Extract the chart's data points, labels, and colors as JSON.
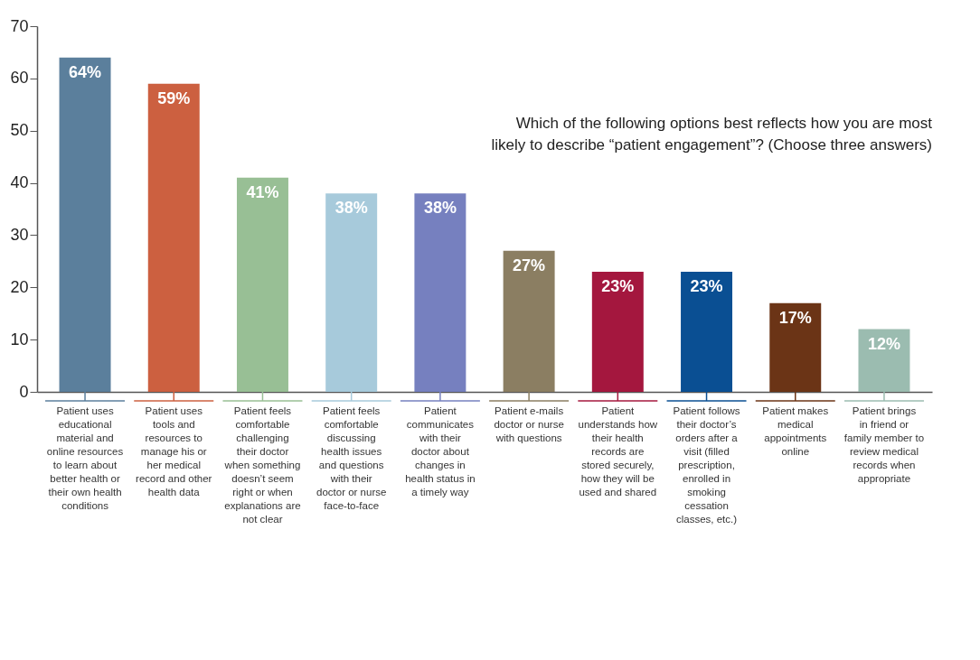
{
  "chart_data": {
    "type": "bar",
    "title": "Which of the following options best reflects how you are most likely to describe “patient engagement”? (Choose three answers)",
    "categories": [
      "Patient uses educational material and online resources to learn about better health or their own health conditions",
      "Patient uses tools and resources to manage his or her medical record and other health data",
      "Patient feels comfortable challenging their doctor when something doesn’t seem right or when explanations are not clear",
      "Patient feels comfortable discussing health issues and questions with their doctor or nurse face-to-face",
      "Patient communicates with their doctor about changes in health status in a timely way",
      "Patient e-mails doctor or nurse with questions",
      "Patient understands how their health records are stored securely, how they will be used and shared",
      "Patient follows their doctor’s orders after a visit (filled prescription, enrolled in smoking cessation classes, etc.)",
      "Patient makes medical appointments online",
      "Patient brings in friend or family member to review medical records when appropriate"
    ],
    "values": [
      64,
      59,
      41,
      38,
      38,
      27,
      23,
      23,
      17,
      12
    ],
    "colors": [
      "#5b7f9c",
      "#cc6040",
      "#98bf95",
      "#a7cadb",
      "#7680bf",
      "#8b7e62",
      "#a4173e",
      "#0a4f93",
      "#6b3416",
      "#9bbcb0"
    ],
    "value_labels": [
      "64%",
      "59%",
      "41%",
      "38%",
      "38%",
      "27%",
      "23%",
      "23%",
      "17%",
      "12%"
    ],
    "ylim": [
      0,
      70
    ],
    "yticks": [
      0,
      10,
      20,
      30,
      40,
      50,
      60,
      70
    ],
    "grid": false,
    "legend": false
  }
}
